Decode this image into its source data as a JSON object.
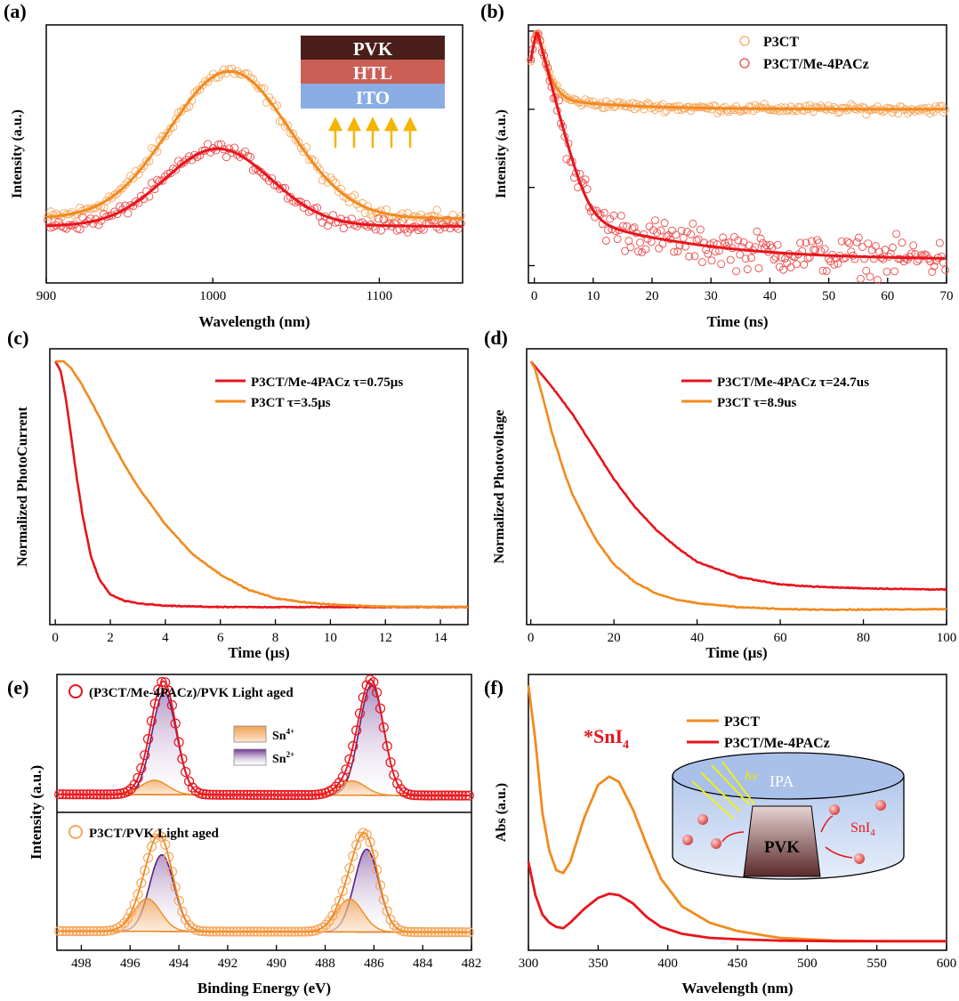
{
  "colors": {
    "orange": "#f28a1e",
    "red": "#e8141c",
    "orange_pts": "#f6a860",
    "red_pts": "#ec4a4a"
  },
  "chart_data": [
    {
      "id": "a",
      "panel_label": "(a)",
      "type": "scatter",
      "xlabel": "Wavelength (nm)",
      "ylabel": "Intensity (a.u.)",
      "xlim": [
        900,
        1150
      ],
      "ylim": [
        0,
        1
      ],
      "xticks": [
        "900",
        "1000",
        "1100"
      ],
      "xtick_values": [
        900,
        1000,
        1100
      ],
      "y_tick_labels": false,
      "series": [
        {
          "color": "orange",
          "fit": {
            "peak_x": 1010,
            "peak_y": 0.82,
            "sigma": 36,
            "baseline": 0.25
          }
        },
        {
          "color": "red",
          "fit": {
            "peak_x": 1003,
            "peak_y": 0.52,
            "sigma": 32,
            "baseline": 0.22
          }
        }
      ],
      "inset_layers": [
        "PVK",
        "HTL",
        "ITO"
      ]
    },
    {
      "id": "b",
      "panel_label": "(b)",
      "type": "scatter",
      "xlabel": "Time (ns)",
      "ylabel": "Intensity (a.u.)",
      "xlim": [
        -1,
        70
      ],
      "log_y": true,
      "ylim": [
        0.0006,
        1.2
      ],
      "xticks": [
        "0",
        "10",
        "20",
        "30",
        "40",
        "50",
        "60",
        "70"
      ],
      "xtick_values": [
        0,
        10,
        20,
        30,
        40,
        50,
        60,
        70
      ],
      "y_tick_labels": false,
      "legend_position": "top-right",
      "series": [
        {
          "name": "P3CT",
          "color": "orange",
          "fit": {
            "peak_t": 0.5,
            "plateau": 0.1,
            "fast_tau": 1.2
          }
        },
        {
          "name": "P3CT/Me-4PACz",
          "color": "red",
          "fit": {
            "peak_t": 0.5,
            "plateau": 0.0012,
            "fast_tau": 1.5,
            "mid_amp": 0.004,
            "mid_tau": 15
          }
        }
      ]
    },
    {
      "id": "c",
      "panel_label": "(c)",
      "type": "line",
      "xlabel": "Time (μs)",
      "ylabel": "Normalized PhotoCurrent",
      "xlim": [
        -0.2,
        15
      ],
      "ylim": [
        -0.05,
        1.05
      ],
      "xticks": [
        "0",
        "2",
        "4",
        "6",
        "8",
        "10",
        "12",
        "14"
      ],
      "xtick_values": [
        0,
        2,
        4,
        6,
        8,
        10,
        12,
        14
      ],
      "legend_position": "top-right",
      "series": [
        {
          "name": "P3CT/Me-4PACz τ=0.75μs",
          "color": "red",
          "x": [
            0,
            0.2,
            0.4,
            0.6,
            0.8,
            1.0,
            1.3,
            1.6,
            2.0,
            2.5,
            3,
            4,
            6,
            8,
            10,
            12,
            15
          ],
          "y": [
            1.0,
            0.96,
            0.84,
            0.68,
            0.52,
            0.38,
            0.22,
            0.13,
            0.07,
            0.045,
            0.035,
            0.025,
            0.02,
            0.02,
            0.02,
            0.02,
            0.02
          ]
        },
        {
          "name": "P3CT τ=3.5μs",
          "color": "orange",
          "x": [
            0,
            0.3,
            0.6,
            1,
            1.5,
            2,
            2.5,
            3,
            4,
            5,
            6,
            7,
            8,
            9,
            10,
            12,
            15
          ],
          "y": [
            1.0,
            1.0,
            0.97,
            0.9,
            0.8,
            0.69,
            0.59,
            0.5,
            0.35,
            0.23,
            0.15,
            0.09,
            0.055,
            0.04,
            0.03,
            0.022,
            0.02
          ]
        }
      ]
    },
    {
      "id": "d",
      "panel_label": "(d)",
      "type": "line",
      "xlabel": "Time (μs)",
      "ylabel": "Normalized Photovoltage",
      "xlim": [
        -1,
        100
      ],
      "ylim": [
        -0.05,
        1.05
      ],
      "xticks": [
        "0",
        "20",
        "40",
        "60",
        "80",
        "100"
      ],
      "xtick_values": [
        0,
        20,
        40,
        60,
        80,
        100
      ],
      "legend_position": "top-right",
      "series": [
        {
          "name": "P3CT/Me-4PACz τ=24.7us",
          "color": "red",
          "x": [
            0,
            2,
            5,
            10,
            15,
            20,
            25,
            30,
            35,
            40,
            50,
            60,
            70,
            80,
            90,
            100
          ],
          "y": [
            1.0,
            0.96,
            0.9,
            0.79,
            0.66,
            0.53,
            0.42,
            0.33,
            0.26,
            0.2,
            0.14,
            0.11,
            0.1,
            0.095,
            0.092,
            0.09
          ]
        },
        {
          "name": "P3CT τ=8.9us",
          "color": "orange",
          "x": [
            0,
            1,
            3,
            5,
            8,
            10,
            13,
            16,
            20,
            25,
            30,
            35,
            40,
            50,
            60,
            70,
            80,
            100
          ],
          "y": [
            1.0,
            0.97,
            0.85,
            0.72,
            0.56,
            0.47,
            0.37,
            0.28,
            0.19,
            0.12,
            0.075,
            0.05,
            0.035,
            0.02,
            0.012,
            0.01,
            0.01,
            0.012
          ]
        }
      ]
    },
    {
      "id": "e",
      "panel_label": "(e)",
      "type": "area",
      "xlabel": "Binding Energy (eV)",
      "ylabel": "Intensity (a.u.)",
      "xlim": [
        499,
        482
      ],
      "reversed_x": true,
      "xticks": [
        "498",
        "496",
        "494",
        "492",
        "490",
        "488",
        "486",
        "484",
        "482"
      ],
      "xtick_values": [
        498,
        496,
        494,
        492,
        490,
        488,
        486,
        484,
        482
      ],
      "y_tick_labels": false,
      "legend_items": [
        {
          "label": "Sn",
          "sup": "4+"
        },
        {
          "label": "Sn",
          "sup": "2+"
        }
      ],
      "subpanels": [
        {
          "title": "(P3CT/Me-4PACz)/PVK Light aged",
          "sn2_peaks": [
            494.6,
            486.1
          ],
          "sn2_amp": 1.0,
          "sn4_peaks": [
            495.0,
            486.9
          ],
          "sn4_amp": 0.14
        },
        {
          "title": "P3CT/PVK Light aged",
          "sn2_peaks": [
            494.7,
            486.3
          ],
          "sn2_amp": 0.82,
          "sn4_peaks": [
            495.3,
            487.0
          ],
          "sn4_amp": 0.35
        }
      ]
    },
    {
      "id": "f",
      "panel_label": "(f)",
      "type": "line",
      "xlabel": "Wavelength (nm)",
      "ylabel": "Abs (a.u.)",
      "xlim": [
        300,
        600
      ],
      "ylim": [
        0,
        1
      ],
      "xticks": [
        "300",
        "350",
        "400",
        "450",
        "500",
        "550",
        "600"
      ],
      "xtick_values": [
        300,
        350,
        400,
        450,
        500,
        550,
        600
      ],
      "y_tick_labels": false,
      "legend_position": "top-right",
      "annotation_main": "*SnI",
      "annotation_sub": "4",
      "series": [
        {
          "name": "P3CT",
          "color": "orange",
          "x": [
            300,
            305,
            310,
            315,
            320,
            325,
            330,
            340,
            350,
            358,
            365,
            375,
            385,
            395,
            410,
            430,
            450,
            480,
            520,
            560,
            600
          ],
          "y": [
            0.96,
            0.76,
            0.5,
            0.36,
            0.29,
            0.28,
            0.32,
            0.48,
            0.6,
            0.63,
            0.61,
            0.51,
            0.38,
            0.26,
            0.16,
            0.1,
            0.07,
            0.045,
            0.035,
            0.033,
            0.033
          ]
        },
        {
          "name": "P3CT/Me-4PACz",
          "color": "red",
          "x": [
            300,
            305,
            310,
            315,
            320,
            325,
            330,
            340,
            350,
            358,
            365,
            375,
            385,
            395,
            410,
            430,
            450,
            480,
            520,
            560,
            600
          ],
          "y": [
            0.32,
            0.2,
            0.13,
            0.1,
            0.085,
            0.08,
            0.1,
            0.15,
            0.19,
            0.205,
            0.2,
            0.17,
            0.12,
            0.085,
            0.06,
            0.045,
            0.04,
            0.035,
            0.033,
            0.033,
            0.033
          ]
        }
      ],
      "inset": {
        "solvent": "IPA",
        "sample": "PVK",
        "light": "hv",
        "product_main": "SnI",
        "product_sub": "4"
      }
    }
  ]
}
